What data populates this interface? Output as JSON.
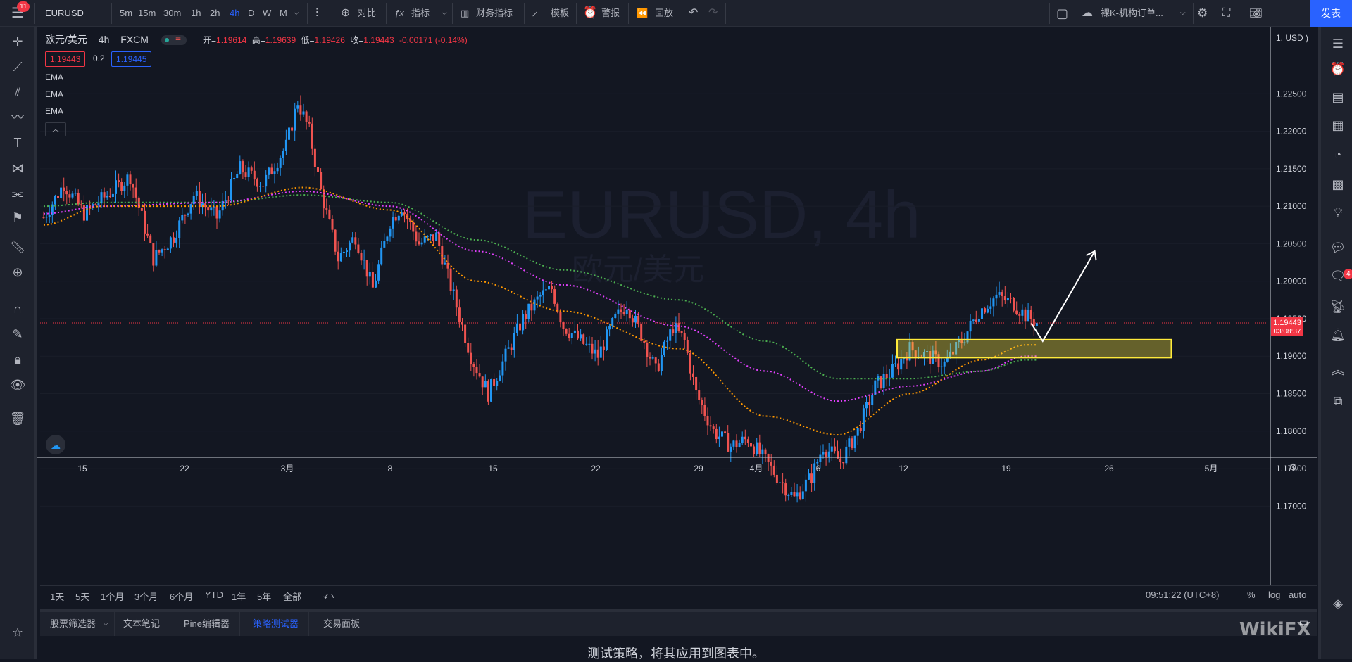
{
  "topbar": {
    "symbol": "EURUSD",
    "notify_count": "11",
    "intervals": [
      "5m",
      "15m",
      "30m",
      "1h",
      "2h",
      "4h",
      "D",
      "W",
      "M"
    ],
    "active_interval": "4h",
    "compare": "对比",
    "indicators": "指标",
    "financials": "财务指标",
    "templates": "模板",
    "alert": "警报",
    "replay": "回放",
    "layout_name": "裸K-机构订单...",
    "publish": "发表"
  },
  "legend": {
    "title": "欧元/美元",
    "interval": "4h",
    "exchange": "FXCM",
    "open_label": "开=",
    "open": "1.19614",
    "high_label": "高=",
    "high": "1.19639",
    "low_label": "低=",
    "low": "1.19426",
    "close_label": "收=",
    "close": "1.19443",
    "change": "-0.00171 (-0.14%)",
    "bid": "1.19443",
    "spread": "0.2",
    "ask": "1.19445",
    "indicators": [
      "EMA",
      "EMA",
      "EMA"
    ]
  },
  "watermark": {
    "symbol": "EURUSD, 4h",
    "name": "欧元/美元"
  },
  "price_scale": {
    "unit": "1. USD )",
    "ticks": [
      "1.22500",
      "1.22000",
      "1.21500",
      "1.21000",
      "1.20500",
      "1.20000",
      "1.19500",
      "1.19000",
      "1.18500",
      "1.18000",
      "1.17500",
      "1.17000"
    ],
    "last_price": "1.19443",
    "countdown": "03:08:37"
  },
  "time_scale": {
    "ticks": [
      "15",
      "22",
      "3月",
      "8",
      "15",
      "22",
      "29",
      "4月",
      "6",
      "12",
      "19",
      "26",
      "5月"
    ]
  },
  "range_bar": {
    "ranges": [
      "1天",
      "5天",
      "1个月",
      "3个月",
      "6个月",
      "YTD",
      "1年",
      "5年",
      "全部"
    ],
    "clock": "09:51:22 (UTC+8)",
    "percent": "%",
    "log": "log",
    "auto": "auto"
  },
  "bottom_tabs": [
    "股票筛选器",
    "文本笔记",
    "Pine编辑器",
    "策略测试器",
    "交易面板"
  ],
  "active_tab": "策略测试器",
  "bottom_message": "测试策略，将其应用到图表中。",
  "right_badge": "4",
  "brand": "WikiFX",
  "colors": {
    "up": "#2196f3",
    "down": "#ef5350",
    "ema_fast": "#ff9800",
    "ema_mid": "#e040fb",
    "ema_slow": "#4caf50",
    "zone": "#ffeb3b",
    "accent": "#2962ff"
  },
  "chart_data": {
    "type": "candlestick",
    "symbol": "EURUSD",
    "interval": "4h",
    "x_ticks": [
      "15",
      "22",
      "3月",
      "8",
      "15",
      "22",
      "29",
      "4月",
      "6",
      "12",
      "19",
      "26",
      "5月"
    ],
    "ylim": [
      1.1675,
      1.2285
    ],
    "last_price": 1.19443,
    "price_path": [
      [
        0,
        1.2085
      ],
      [
        7,
        1.213
      ],
      [
        14,
        1.209
      ],
      [
        22,
        1.2115
      ],
      [
        30,
        1.214
      ],
      [
        38,
        1.203
      ],
      [
        45,
        1.206
      ],
      [
        52,
        1.2115
      ],
      [
        60,
        1.2085
      ],
      [
        68,
        1.215
      ],
      [
        76,
        1.213
      ],
      [
        84,
        1.218
      ],
      [
        88,
        1.224
      ],
      [
        92,
        1.22
      ],
      [
        96,
        1.212
      ],
      [
        102,
        1.203
      ],
      [
        108,
        1.206
      ],
      [
        114,
        1.199
      ],
      [
        120,
        1.208
      ],
      [
        124,
        1.21
      ],
      [
        130,
        1.205
      ],
      [
        136,
        1.206
      ],
      [
        142,
        1.198
      ],
      [
        148,
        1.19
      ],
      [
        154,
        1.185
      ],
      [
        160,
        1.19
      ],
      [
        166,
        1.195
      ],
      [
        172,
        1.198
      ],
      [
        176,
        1.199
      ],
      [
        180,
        1.194
      ],
      [
        186,
        1.192
      ],
      [
        192,
        1.19
      ],
      [
        198,
        1.195
      ],
      [
        202,
        1.197
      ],
      [
        208,
        1.192
      ],
      [
        212,
        1.188
      ],
      [
        218,
        1.194
      ],
      [
        222,
        1.192
      ],
      [
        226,
        1.185
      ],
      [
        232,
        1.18
      ],
      [
        238,
        1.178
      ],
      [
        244,
        1.179
      ],
      [
        250,
        1.176
      ],
      [
        256,
        1.173
      ],
      [
        260,
        1.171
      ],
      [
        266,
        1.174
      ],
      [
        270,
        1.178
      ],
      [
        276,
        1.176
      ],
      [
        282,
        1.18
      ],
      [
        288,
        1.186
      ],
      [
        294,
        1.188
      ],
      [
        300,
        1.191
      ],
      [
        306,
        1.19
      ],
      [
        312,
        1.189
      ],
      [
        318,
        1.192
      ],
      [
        324,
        1.196
      ],
      [
        330,
        1.198
      ],
      [
        336,
        1.197
      ],
      [
        340,
        1.1955
      ],
      [
        344,
        1.1944
      ]
    ],
    "ema_fast": [
      [
        0,
        1.2075
      ],
      [
        20,
        1.21
      ],
      [
        60,
        1.21
      ],
      [
        90,
        1.2125
      ],
      [
        120,
        1.2095
      ],
      [
        150,
        1.2
      ],
      [
        180,
        1.196
      ],
      [
        220,
        1.191
      ],
      [
        250,
        1.182
      ],
      [
        275,
        1.1795
      ],
      [
        300,
        1.185
      ],
      [
        325,
        1.1895
      ],
      [
        340,
        1.1915
      ]
    ],
    "ema_mid": [
      [
        0,
        1.209
      ],
      [
        20,
        1.21
      ],
      [
        60,
        1.2105
      ],
      [
        90,
        1.212
      ],
      [
        120,
        1.21
      ],
      [
        150,
        1.204
      ],
      [
        180,
        1.1995
      ],
      [
        220,
        1.194
      ],
      [
        250,
        1.188
      ],
      [
        275,
        1.184
      ],
      [
        300,
        1.186
      ],
      [
        325,
        1.188
      ],
      [
        340,
        1.19
      ]
    ],
    "ema_slow": [
      [
        0,
        1.21
      ],
      [
        20,
        1.2105
      ],
      [
        60,
        1.2105
      ],
      [
        90,
        1.2115
      ],
      [
        120,
        1.2105
      ],
      [
        150,
        1.2055
      ],
      [
        180,
        1.2015
      ],
      [
        220,
        1.1975
      ],
      [
        250,
        1.192
      ],
      [
        275,
        1.187
      ],
      [
        300,
        1.187
      ],
      [
        325,
        1.188
      ],
      [
        340,
        1.1895
      ]
    ],
    "zone": {
      "price_top": 1.1922,
      "price_bottom": 1.1898,
      "x_start": 300,
      "x_end": 395
    },
    "projection": [
      [
        344,
        1.1944
      ],
      [
        348,
        1.192
      ],
      [
        366,
        1.204
      ]
    ]
  }
}
